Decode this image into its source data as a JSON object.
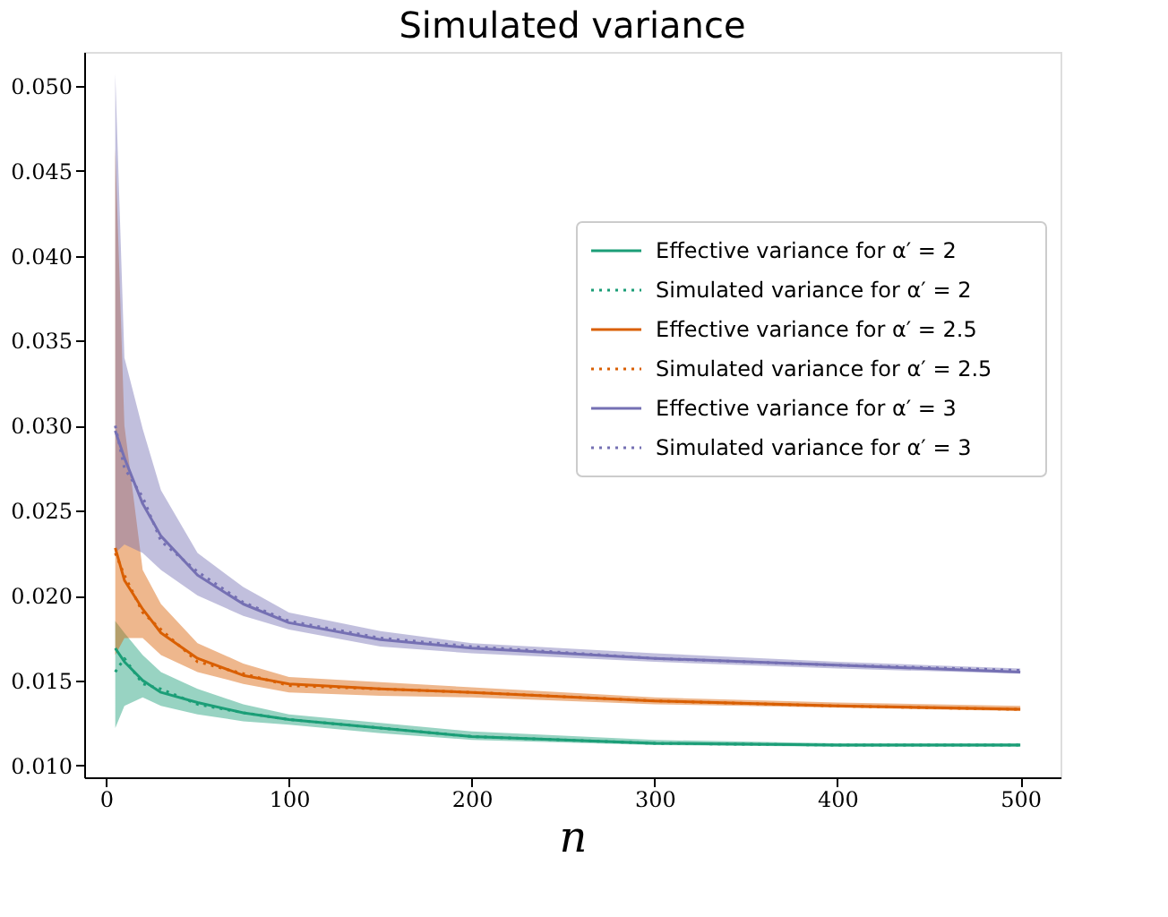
{
  "chart_data": {
    "type": "line",
    "title": "Simulated variance",
    "xlabel": "n",
    "x": [
      5,
      10,
      20,
      30,
      50,
      75,
      100,
      150,
      200,
      300,
      400,
      500
    ],
    "xlim": [
      -12,
      522
    ],
    "xticks": [
      0,
      100,
      200,
      300,
      400,
      500
    ],
    "ylim": [
      0.0093,
      0.052
    ],
    "yticks": [
      {
        "value": 0.01,
        "label": "0.010"
      },
      {
        "value": 0.015,
        "label": "0.015"
      },
      {
        "value": 0.02,
        "label": "0.020"
      },
      {
        "value": 0.025,
        "label": "0.025"
      },
      {
        "value": 0.03,
        "label": "0.030"
      },
      {
        "value": 0.035,
        "label": "0.035"
      },
      {
        "value": 0.04,
        "label": "0.040"
      },
      {
        "value": 0.045,
        "label": "0.045"
      },
      {
        "value": 0.05,
        "label": "0.050"
      }
    ],
    "grid": false,
    "legend": "right",
    "series": [
      {
        "name": "Effective variance for α′ = 2",
        "line_style": "solid",
        "color": "#1b9e77",
        "values": [
          0.0169,
          0.0161,
          0.015,
          0.0143,
          0.0137,
          0.0131,
          0.0127,
          0.0122,
          0.0117,
          0.0113,
          0.0112,
          0.0112
        ]
      },
      {
        "name": "Simulated variance for α′ = 2",
        "line_style": "dotted",
        "color": "#1b9e77",
        "values": [
          0.0155,
          0.0163,
          0.0148,
          0.0145,
          0.0136,
          0.0131,
          0.0127,
          0.0122,
          0.0117,
          0.0113,
          0.0112,
          0.0112
        ],
        "lower": [
          0.0122,
          0.0135,
          0.014,
          0.0135,
          0.013,
          0.0126,
          0.0124,
          0.0119,
          0.0115,
          0.0112,
          0.0111,
          0.0111
        ],
        "upper": [
          0.0185,
          0.0178,
          0.0165,
          0.0155,
          0.0145,
          0.0136,
          0.013,
          0.0125,
          0.012,
          0.0115,
          0.0113,
          0.0113
        ]
      },
      {
        "name": "Effective variance for α′ = 2.5",
        "line_style": "solid",
        "color": "#d95f02",
        "values": [
          0.0228,
          0.0209,
          0.0192,
          0.0178,
          0.0163,
          0.0153,
          0.0148,
          0.0145,
          0.0143,
          0.0138,
          0.0135,
          0.0133
        ]
      },
      {
        "name": "Simulated variance for α′ = 2.5",
        "line_style": "dotted",
        "color": "#d95f02",
        "values": [
          0.0225,
          0.0212,
          0.019,
          0.018,
          0.0161,
          0.0154,
          0.0147,
          0.0145,
          0.0143,
          0.0138,
          0.0135,
          0.0133
        ],
        "lower": [
          0.0165,
          0.0175,
          0.0175,
          0.0165,
          0.0155,
          0.0148,
          0.0143,
          0.0141,
          0.014,
          0.0136,
          0.0134,
          0.0132
        ],
        "upper": [
          0.0463,
          0.03,
          0.0215,
          0.0195,
          0.0172,
          0.016,
          0.0152,
          0.0149,
          0.0146,
          0.014,
          0.0137,
          0.0135
        ]
      },
      {
        "name": "Effective variance for α′ = 3",
        "line_style": "solid",
        "color": "#7570b3",
        "values": [
          0.0297,
          0.0281,
          0.0254,
          0.0235,
          0.0212,
          0.0195,
          0.0184,
          0.0174,
          0.0169,
          0.0163,
          0.0159,
          0.0155
        ]
      },
      {
        "name": "Simulated variance for α′ = 3",
        "line_style": "dotted",
        "color": "#7570b3",
        "values": [
          0.03,
          0.0275,
          0.0258,
          0.0232,
          0.0214,
          0.0196,
          0.0185,
          0.0175,
          0.017,
          0.0163,
          0.0159,
          0.0156
        ],
        "lower": [
          0.0225,
          0.023,
          0.0225,
          0.0215,
          0.02,
          0.0188,
          0.018,
          0.017,
          0.0166,
          0.0161,
          0.0157,
          0.0154
        ],
        "upper": [
          0.0507,
          0.034,
          0.0298,
          0.0262,
          0.0225,
          0.0205,
          0.019,
          0.0179,
          0.0172,
          0.0166,
          0.0161,
          0.0157
        ]
      }
    ]
  }
}
